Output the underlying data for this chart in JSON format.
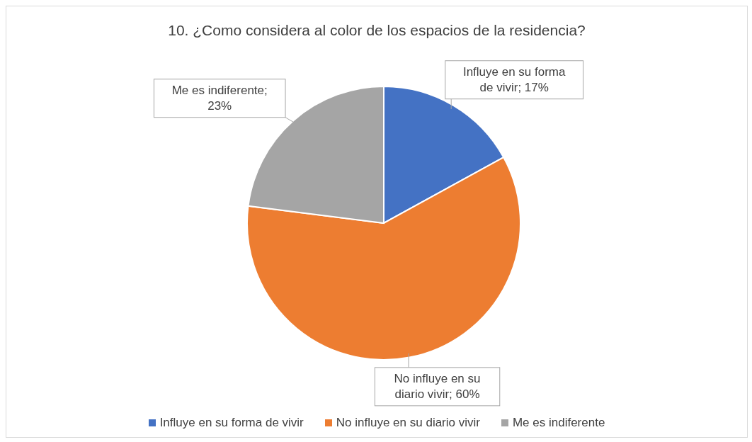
{
  "chart_data": {
    "type": "pie",
    "title": "10. ¿Como considera al color de los espacios de la residencia?",
    "categories": [
      "Influye en su forma de vivir",
      "No influye en su diario vivir",
      "Me es indiferente"
    ],
    "values": [
      17,
      60,
      23
    ],
    "colors": [
      "#4472c4",
      "#ed7d31",
      "#a5a5a5"
    ],
    "value_labels": [
      "Influye en su forma de vivir; 17%",
      "No influye en su diario vivir; 60%",
      "Me es indiferente; 23%"
    ],
    "legend": "bottom"
  }
}
